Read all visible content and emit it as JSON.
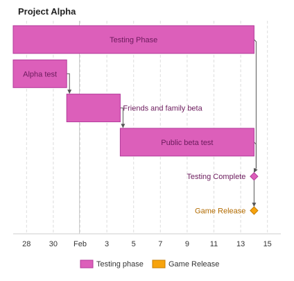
{
  "chart_data": {
    "type": "gantt",
    "title": "Project Alpha",
    "x_ticks": [
      "28",
      "30",
      "Feb",
      "3",
      "5",
      "7",
      "9",
      "11",
      "13",
      "15"
    ],
    "x_tick_dates": [
      "2019-01-28",
      "2019-01-30",
      "2019-02-01",
      "2019-02-03",
      "2019-02-05",
      "2019-02-07",
      "2019-02-09",
      "2019-02-11",
      "2019-02-13",
      "2019-02-15"
    ],
    "x_range": [
      "2019-01-27",
      "2019-02-16"
    ],
    "tasks": [
      {
        "name": "Testing Phase",
        "start": "2019-01-27",
        "end": "2019-02-14",
        "series": "Testing phase",
        "label_position": "inside"
      },
      {
        "name": "Alpha test",
        "start": "2019-01-27",
        "end": "2019-01-31",
        "series": "Testing phase",
        "label_position": "inside"
      },
      {
        "name": "Friends and family beta",
        "start": "2019-01-31",
        "end": "2019-02-04",
        "series": "Testing phase",
        "label_position": "right"
      },
      {
        "name": "Public beta test",
        "start": "2019-02-04",
        "end": "2019-02-14",
        "series": "Testing phase",
        "label_position": "inside"
      }
    ],
    "milestones": [
      {
        "name": "Testing Complete",
        "date": "2019-02-14",
        "series": "Testing phase"
      },
      {
        "name": "Game Release",
        "date": "2019-02-14",
        "series": "Game Release"
      }
    ],
    "dependencies": [
      {
        "from": 1,
        "to": 2
      },
      {
        "from": 2,
        "to": 3
      },
      {
        "from": 0,
        "to": 4
      },
      {
        "from": 3,
        "to": 4
      },
      {
        "from": 4,
        "to": 5
      }
    ],
    "legend": {
      "position": "bottom",
      "items": [
        {
          "label": "Testing phase",
          "color": "#dc5fba",
          "border": "#b2399a"
        },
        {
          "label": "Game Release",
          "color": "#f7a30c",
          "border": "#c57d05"
        }
      ]
    },
    "grid": {
      "vertical_dashed": true
    },
    "colors": {
      "bar": "#dc5fba",
      "bar_border": "#b2399a",
      "milestone_testing": "#dc5fba",
      "milestone_release": "#f7a30c",
      "milestone_release_text": "#b26b00",
      "task_text": "#6b1a5c",
      "connector": "#555555",
      "grid": "#dddddd",
      "axis": "#cccccc"
    }
  }
}
